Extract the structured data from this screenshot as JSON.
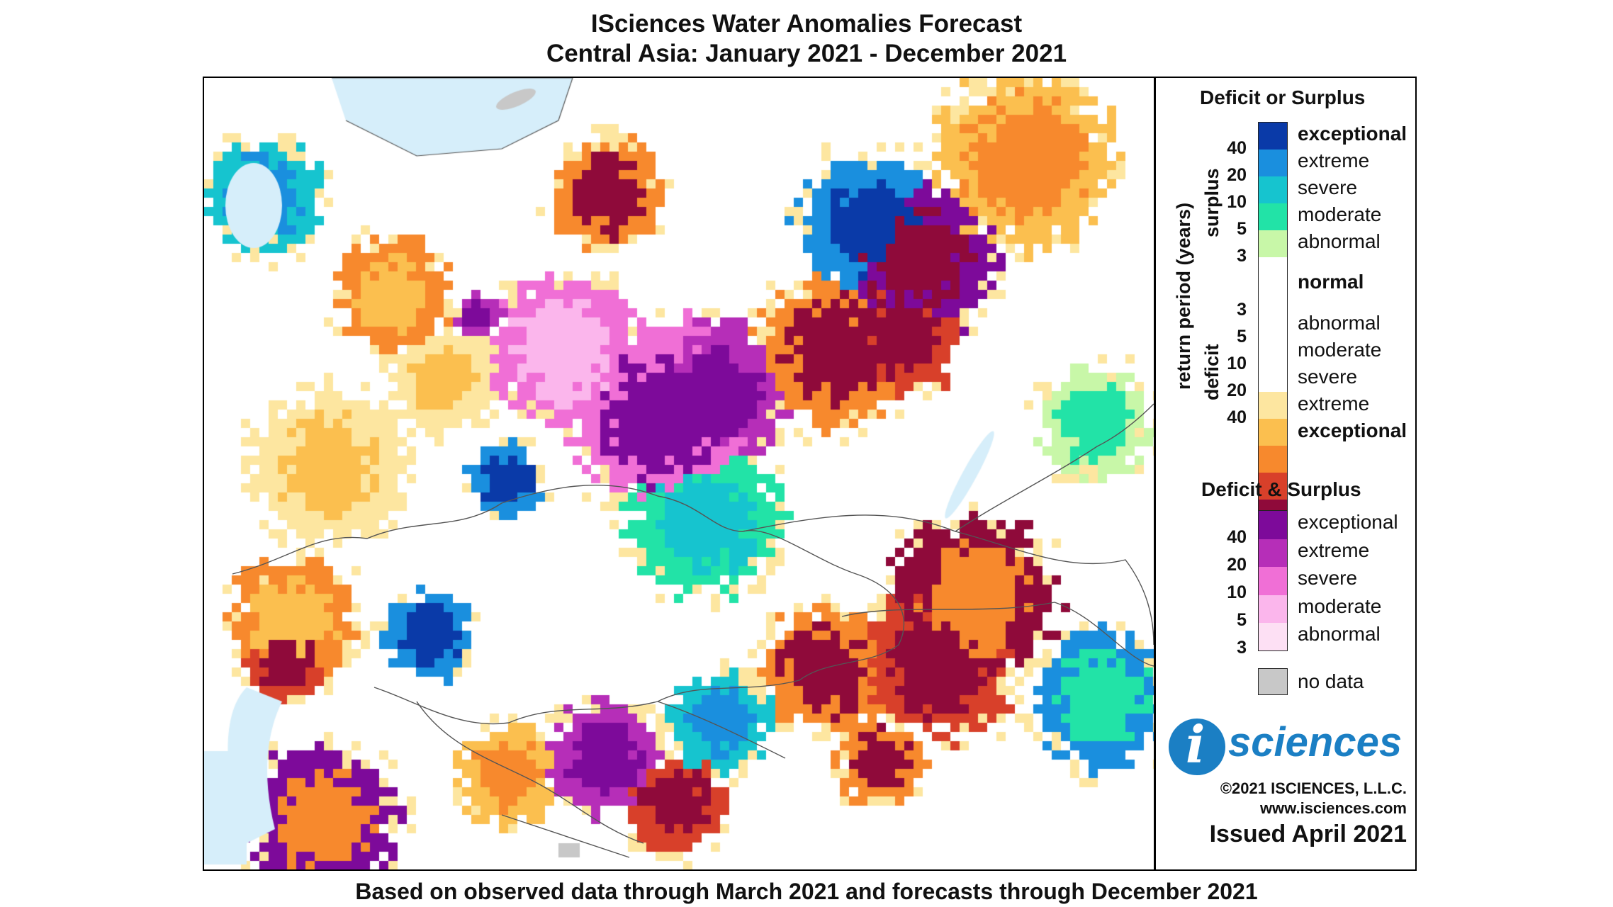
{
  "title_line1": "ISciences Water Anomalies Forecast",
  "title_line2": "Central Asia: January 2021 - December 2021",
  "footer": "Based on observed data through March 2021 and forecasts through December 2021",
  "legend": {
    "section1_title": "Deficit or Surplus",
    "axis_label": "return period (years)",
    "surplus_label": "surplus",
    "deficit_label": "deficit",
    "surplus_classes": [
      {
        "label": "exceptional",
        "color": "#0a3aa8",
        "bold": true
      },
      {
        "label": "extreme",
        "color": "#1a8fde",
        "bold": false
      },
      {
        "label": "severe",
        "color": "#16c4cf",
        "bold": false
      },
      {
        "label": "moderate",
        "color": "#22e3a7",
        "bold": false
      },
      {
        "label": "abnormal",
        "color": "#c8f7a8",
        "bold": false
      }
    ],
    "normal_label": "normal",
    "deficit_classes": [
      {
        "label": "abnormal",
        "color": "#fde6a0",
        "bold": false
      },
      {
        "label": "moderate",
        "color": "#fbbf4f",
        "bold": false
      },
      {
        "label": "severe",
        "color": "#f7892d",
        "bold": false
      },
      {
        "label": "extreme",
        "color": "#d8402a",
        "bold": false
      },
      {
        "label": "exceptional",
        "color": "#8f0a3a",
        "bold": true
      }
    ],
    "surplus_ticks": [
      "40",
      "20",
      "10",
      "5",
      "3"
    ],
    "deficit_ticks": [
      "3",
      "5",
      "10",
      "20",
      "40"
    ],
    "section2_title": "Deficit & Surplus",
    "both_classes": [
      {
        "label": "exceptional",
        "color": "#7d0a9a"
      },
      {
        "label": "extreme",
        "color": "#b62eb8"
      },
      {
        "label": "severe",
        "color": "#f06fd6"
      },
      {
        "label": "moderate",
        "color": "#fbb6ec"
      },
      {
        "label": "abnormal",
        "color": "#fde0f4"
      }
    ],
    "both_ticks": [
      "40",
      "20",
      "10",
      "5",
      "3"
    ],
    "nodata_label": "no data",
    "nodata_color": "#c8c8c8"
  },
  "logo": {
    "i": "i",
    "text": "sciences"
  },
  "copyright": "©2021 ISCIENCES, L.L.C.",
  "website": "www.isciences.com",
  "issued": "Issued April 2021",
  "map": {
    "water_color": "#d6eefa",
    "palette": [
      "#ffffff",
      "#fde6a0",
      "#fbbf4f",
      "#f7892d",
      "#d8402a",
      "#8f0a3a",
      "#c8f7a8",
      "#22e3a7",
      "#16c4cf",
      "#1a8fde",
      "#0a3aa8",
      "#fde0f4",
      "#fbb6ec",
      "#f06fd6",
      "#b62eb8",
      "#7d0a9a",
      "#c8c8c8"
    ]
  }
}
